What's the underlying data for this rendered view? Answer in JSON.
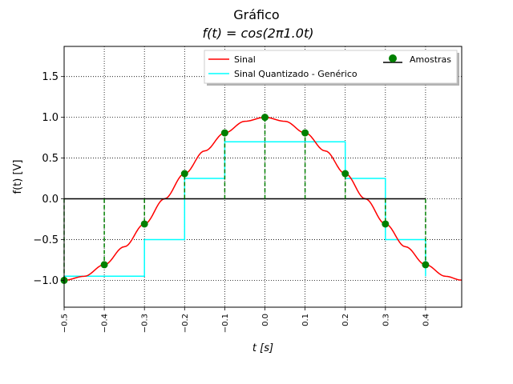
{
  "chart_data": {
    "type": "line",
    "title": "Gráfico",
    "subtitle": "f(t) = cos(2π1.0t)",
    "xlabel": "t [s]",
    "ylabel": "f(t) [V]",
    "xlim": [
      -0.5,
      0.49
    ],
    "ylim": [
      -1.33,
      1.87
    ],
    "x_ticks": [
      -0.5,
      -0.4,
      -0.3,
      -0.2,
      -0.1,
      0.0,
      0.1,
      0.2,
      0.3,
      0.4
    ],
    "x_tick_labels": [
      "−0.5",
      "−0.4",
      "−0.3",
      "−0.2",
      "−0.1",
      "0.0",
      "0.1",
      "0.2",
      "0.3",
      "0.4"
    ],
    "y_ticks": [
      -1.0,
      -0.5,
      0.0,
      0.5,
      1.0,
      1.5
    ],
    "y_tick_labels": [
      "−1.0",
      "−0.5",
      "0.0",
      "0.5",
      "1.0",
      "1.5"
    ],
    "grid": true,
    "legend_position": "top-right",
    "legend": {
      "signal": "Sinal",
      "quantized": "Sinal Quantizado - Genérico",
      "samples": "Amostras"
    },
    "series": [
      {
        "name": "Sinal",
        "kind": "curve",
        "color": "#ff0000",
        "x": [
          -0.5,
          -0.45,
          -0.4,
          -0.35,
          -0.3,
          -0.25,
          -0.2,
          -0.15,
          -0.1,
          -0.05,
          0.0,
          0.05,
          0.1,
          0.15,
          0.2,
          0.25,
          0.3,
          0.35,
          0.4,
          0.45,
          0.49
        ],
        "y": [
          -1.0,
          -0.951,
          -0.809,
          -0.588,
          -0.309,
          0.0,
          0.309,
          0.588,
          0.809,
          0.951,
          1.0,
          0.951,
          0.809,
          0.588,
          0.309,
          0.0,
          -0.309,
          -0.588,
          -0.809,
          -0.951,
          -0.998
        ]
      },
      {
        "name": "Sinal Quantizado - Genérico",
        "kind": "step",
        "color": "#00ffff",
        "x": [
          -0.5,
          -0.3,
          -0.2,
          -0.1,
          0.1,
          0.2,
          0.3,
          0.4
        ],
        "y": [
          -0.95,
          -0.5,
          0.25,
          0.7,
          0.7,
          0.25,
          -0.5,
          -0.95
        ]
      },
      {
        "name": "Amostras",
        "kind": "stem",
        "color": "#008000",
        "x": [
          -0.5,
          -0.4,
          -0.3,
          -0.2,
          -0.1,
          0.0,
          0.1,
          0.2,
          0.3,
          0.4
        ],
        "y": [
          -1.0,
          -0.809,
          -0.309,
          0.309,
          0.809,
          1.0,
          0.809,
          0.309,
          -0.309,
          -0.809
        ],
        "baseline": 0.0,
        "baseline_color": "#000000"
      }
    ]
  }
}
